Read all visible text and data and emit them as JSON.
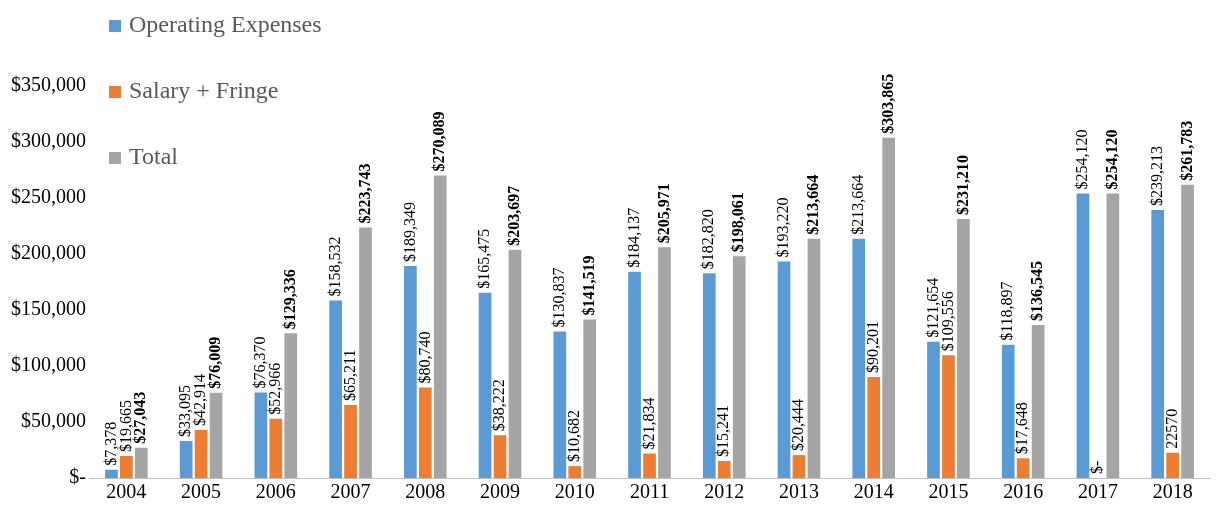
{
  "chart_data": {
    "type": "bar",
    "categories": [
      "2004",
      "2005",
      "2006",
      "2007",
      "2008",
      "2009",
      "2010",
      "2011",
      "2012",
      "2013",
      "2014",
      "2015",
      "2016",
      "2017",
      "2018"
    ],
    "series": [
      {
        "name": "Operating Expenses",
        "color": "#5b9bd5",
        "values": [
          7378,
          33095,
          76370,
          158532,
          189349,
          165475,
          130837,
          184137,
          182820,
          193220,
          213664,
          121654,
          118897,
          254120,
          239213
        ],
        "value_labels": [
          "$7,378",
          "$33,095",
          "$76,370",
          "$158,532",
          "$189,349",
          "$165,475",
          "$130,837",
          "$184,137",
          "$182,820",
          "$193,220",
          "$213,664",
          "$121,654",
          "$118,897",
          "$254,120",
          "$239,213"
        ]
      },
      {
        "name": "Salary + Fringe",
        "color": "#ed7d31",
        "values": [
          19665,
          42914,
          52966,
          65211,
          80740,
          38222,
          10682,
          21834,
          15241,
          20444,
          90201,
          109556,
          17648,
          0,
          22570
        ],
        "value_labels": [
          "$19,665",
          "$42,914",
          "$52,966",
          "$65,211",
          "$80,740",
          "$38,222",
          "$10,682",
          "$21,834",
          "$15,241",
          "$20,444",
          "$90,201",
          "$109,556",
          "$17,648",
          "$-",
          "22570"
        ]
      },
      {
        "name": "Total",
        "color": "#a5a5a5",
        "values": [
          27043,
          76009,
          129336,
          223743,
          270089,
          203697,
          141519,
          205971,
          198061,
          213664,
          303865,
          231210,
          136545,
          254120,
          261783
        ],
        "value_labels": [
          "$27,043",
          "$76,009",
          "$129,336",
          "$223,743",
          "$270,089",
          "$203,697",
          "$141,519",
          "$205,971",
          "$198,061",
          "$213,664",
          "$303,865",
          "$231,210",
          "$136,545",
          "$254,120",
          "$261,783"
        ]
      }
    ],
    "ylim": [
      0,
      350000
    ],
    "yticks": [
      {
        "value": 0,
        "label": "$-"
      },
      {
        "value": 50000,
        "label": "$50,000"
      },
      {
        "value": 100000,
        "label": "$100,000"
      },
      {
        "value": 150000,
        "label": "$150,000"
      },
      {
        "value": 200000,
        "label": "$200,000"
      },
      {
        "value": 250000,
        "label": "$250,000"
      },
      {
        "value": 300000,
        "label": "$300,000"
      },
      {
        "value": 350000,
        "label": "$350,000"
      }
    ],
    "legend": "top left",
    "grid": false
  }
}
